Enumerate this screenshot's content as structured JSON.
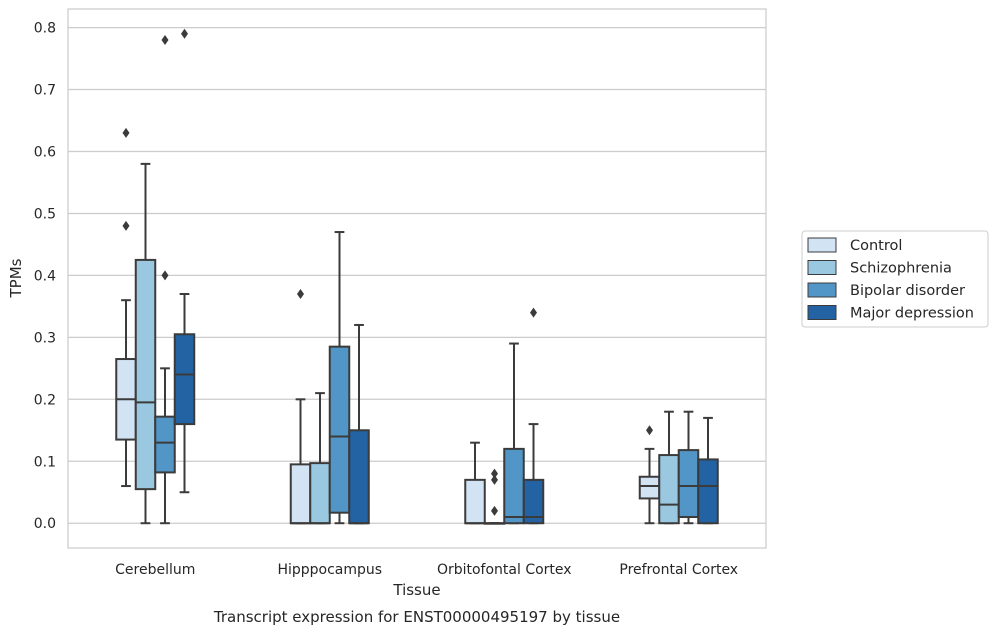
{
  "chart_data": {
    "type": "box",
    "title": "",
    "caption": "Transcript expression for ENST00000495197 by tissue",
    "xlabel": "Tissue",
    "ylabel": "TPMs",
    "ylim": [
      -0.04,
      0.83
    ],
    "yticks": [
      0.0,
      0.1,
      0.2,
      0.3,
      0.4,
      0.5,
      0.6,
      0.7,
      0.8
    ],
    "ytick_labels": [
      "0.0",
      "0.1",
      "0.2",
      "0.3",
      "0.4",
      "0.5",
      "0.6",
      "0.7",
      "0.8"
    ],
    "grid": "horizontal",
    "legend_position": "right",
    "categories": [
      "Cerebellum",
      "Hipppocampus",
      "Orbitofontal Cortex",
      "Prefrontal Cortex"
    ],
    "series": [
      {
        "name": "Control",
        "color": "#d2e3f3",
        "boxes": [
          {
            "min": 0.06,
            "q1": 0.135,
            "median": 0.2,
            "q3": 0.265,
            "max": 0.36,
            "outliers": [
              0.48,
              0.63
            ]
          },
          {
            "min": 0.0,
            "q1": 0.0,
            "median": 0.0,
            "q3": 0.095,
            "max": 0.2,
            "outliers": [
              0.37
            ]
          },
          {
            "min": 0.0,
            "q1": 0.0,
            "median": 0.0,
            "q3": 0.07,
            "max": 0.13,
            "outliers": []
          },
          {
            "min": 0.0,
            "q1": 0.04,
            "median": 0.06,
            "q3": 0.075,
            "max": 0.12,
            "outliers": [
              0.15
            ]
          }
        ]
      },
      {
        "name": "Schizophrenia",
        "color": "#9ac8e0",
        "boxes": [
          {
            "min": 0.0,
            "q1": 0.055,
            "median": 0.195,
            "q3": 0.425,
            "max": 0.58,
            "outliers": []
          },
          {
            "min": 0.0,
            "q1": 0.0,
            "median": 0.0,
            "q3": 0.097,
            "max": 0.21,
            "outliers": []
          },
          {
            "min": 0.0,
            "q1": 0.0,
            "median": 0.0,
            "q3": 0.0,
            "max": 0.0,
            "outliers": [
              0.02,
              0.07,
              0.08
            ]
          },
          {
            "min": 0.0,
            "q1": 0.0,
            "median": 0.03,
            "q3": 0.11,
            "max": 0.18,
            "outliers": []
          }
        ]
      },
      {
        "name": "Bipolar disorder",
        "color": "#5296c7",
        "boxes": [
          {
            "min": 0.0,
            "q1": 0.082,
            "median": 0.13,
            "q3": 0.172,
            "max": 0.25,
            "outliers": [
              0.4,
              0.78
            ]
          },
          {
            "min": 0.0,
            "q1": 0.017,
            "median": 0.14,
            "q3": 0.285,
            "max": 0.47,
            "outliers": []
          },
          {
            "min": 0.0,
            "q1": 0.0,
            "median": 0.01,
            "q3": 0.12,
            "max": 0.29,
            "outliers": []
          },
          {
            "min": 0.0,
            "q1": 0.01,
            "median": 0.06,
            "q3": 0.118,
            "max": 0.18,
            "outliers": []
          }
        ]
      },
      {
        "name": "Major depression",
        "color": "#2363a4",
        "boxes": [
          {
            "min": 0.05,
            "q1": 0.16,
            "median": 0.24,
            "q3": 0.305,
            "max": 0.37,
            "outliers": [
              0.79
            ]
          },
          {
            "min": 0.0,
            "q1": 0.0,
            "median": 0.0,
            "q3": 0.15,
            "max": 0.32,
            "outliers": []
          },
          {
            "min": 0.0,
            "q1": 0.0,
            "median": 0.01,
            "q3": 0.07,
            "max": 0.16,
            "outliers": [
              0.34
            ]
          },
          {
            "min": 0.0,
            "q1": 0.0,
            "median": 0.06,
            "q3": 0.103,
            "max": 0.17,
            "outliers": []
          }
        ]
      }
    ]
  }
}
